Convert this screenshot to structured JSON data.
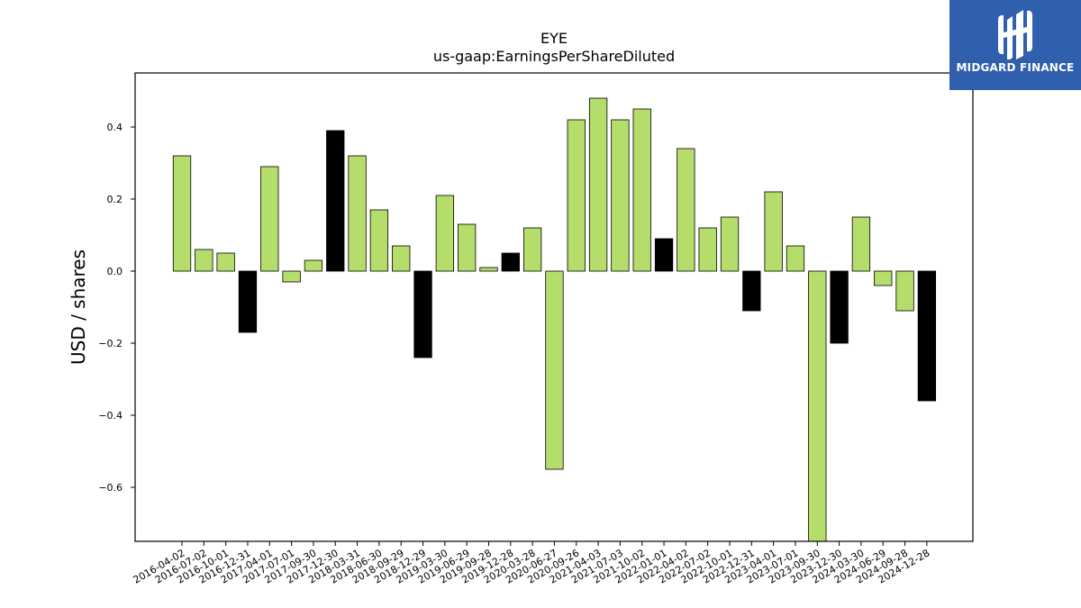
{
  "chart_data": {
    "type": "bar",
    "title": "EYE",
    "subtitle": "us-gaap:EarningsPerShareDiluted",
    "xlabel": "",
    "ylabel": "USD / shares",
    "ylim": [
      -0.75,
      0.55
    ],
    "yticks": [
      0.4,
      0.2,
      0.0,
      -0.2,
      -0.4,
      -0.6
    ],
    "ytick_labels": [
      "0.4",
      "0.2",
      "0.0",
      "−0.2",
      "−0.4",
      "−0.6"
    ],
    "grid": false,
    "categories": [
      "2016-04-02",
      "2016-07-02",
      "2016-10-01",
      "2016-12-31",
      "2017-04-01",
      "2017-07-01",
      "2017-09-30",
      "2017-12-30",
      "2018-03-31",
      "2018-06-30",
      "2018-09-29",
      "2018-12-29",
      "2019-03-30",
      "2019-06-29",
      "2019-09-28",
      "2019-12-28",
      "2020-03-28",
      "2020-06-27",
      "2020-09-26",
      "2021-04-03",
      "2021-07-03",
      "2021-10-02",
      "2022-01-01",
      "2022-04-02",
      "2022-07-02",
      "2022-10-01",
      "2022-12-31",
      "2023-04-01",
      "2023-07-01",
      "2023-09-30",
      "2023-12-30",
      "2024-03-30",
      "2024-06-29",
      "2024-09-28",
      "2024-12-28"
    ],
    "values": [
      0.32,
      0.06,
      0.05,
      -0.17,
      0.29,
      -0.03,
      0.03,
      0.39,
      0.32,
      0.17,
      0.07,
      -0.24,
      0.21,
      0.13,
      0.01,
      0.05,
      0.12,
      -0.55,
      0.42,
      0.48,
      0.42,
      0.45,
      0.09,
      0.34,
      0.12,
      0.15,
      -0.11,
      0.22,
      0.07,
      -0.75,
      -0.2,
      0.15,
      -0.04,
      -0.11,
      -0.36
    ],
    "bar_colors": [
      "green",
      "green",
      "green",
      "black",
      "green",
      "green",
      "green",
      "black",
      "green",
      "green",
      "green",
      "black",
      "green",
      "green",
      "green",
      "black",
      "green",
      "green",
      "green",
      "green",
      "green",
      "green",
      "black",
      "green",
      "green",
      "green",
      "black",
      "green",
      "green",
      "green",
      "black",
      "green",
      "green",
      "green",
      "black"
    ],
    "colors": {
      "green": "#b5dd6b",
      "black": "#000000",
      "edge": "#000000"
    }
  },
  "logo": {
    "text": "MIDGARD FINANCE",
    "background": "#2f5fad"
  }
}
